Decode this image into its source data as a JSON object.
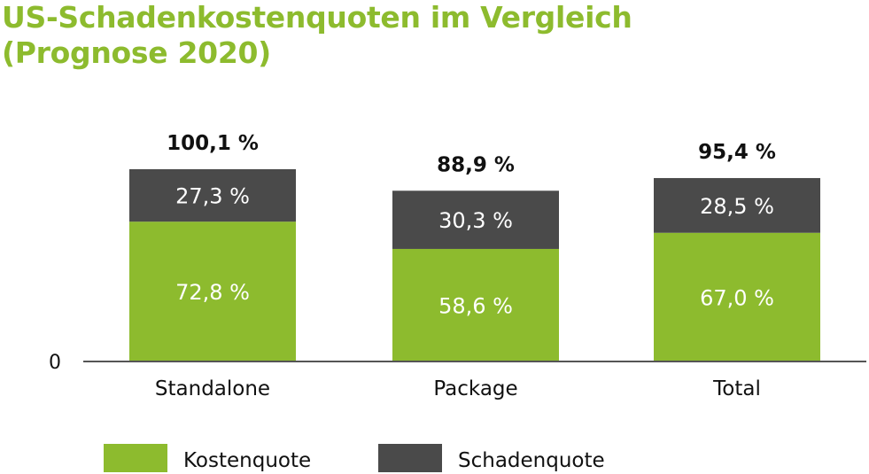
{
  "chart_data": {
    "type": "bar",
    "stacked": true,
    "title_line1": "US-Schadenkostenquoten im Vergleich",
    "title_line2": "(Prognose 2020)",
    "categories": [
      "Standalone",
      "Package",
      "Total"
    ],
    "series": [
      {
        "name": "Kostenquote",
        "color": "#8dbb2e",
        "values": [
          72.8,
          58.6,
          67.0
        ],
        "labels": [
          "72,8 %",
          "58,6 %",
          "67,0 %"
        ]
      },
      {
        "name": "Schadenquote",
        "color": "#4a4a4a",
        "values": [
          27.3,
          30.3,
          28.5
        ],
        "labels": [
          "27,3 %",
          "30,3 %",
          "28,5 %"
        ]
      }
    ],
    "totals": [
      100.1,
      88.9,
      95.4
    ],
    "total_labels": [
      "100,1 %",
      "88,9 %",
      "95,4 %"
    ],
    "y_axis_label": "0",
    "ylim": [
      0,
      100.1
    ],
    "grid": false,
    "legend_position": "bottom-left"
  }
}
